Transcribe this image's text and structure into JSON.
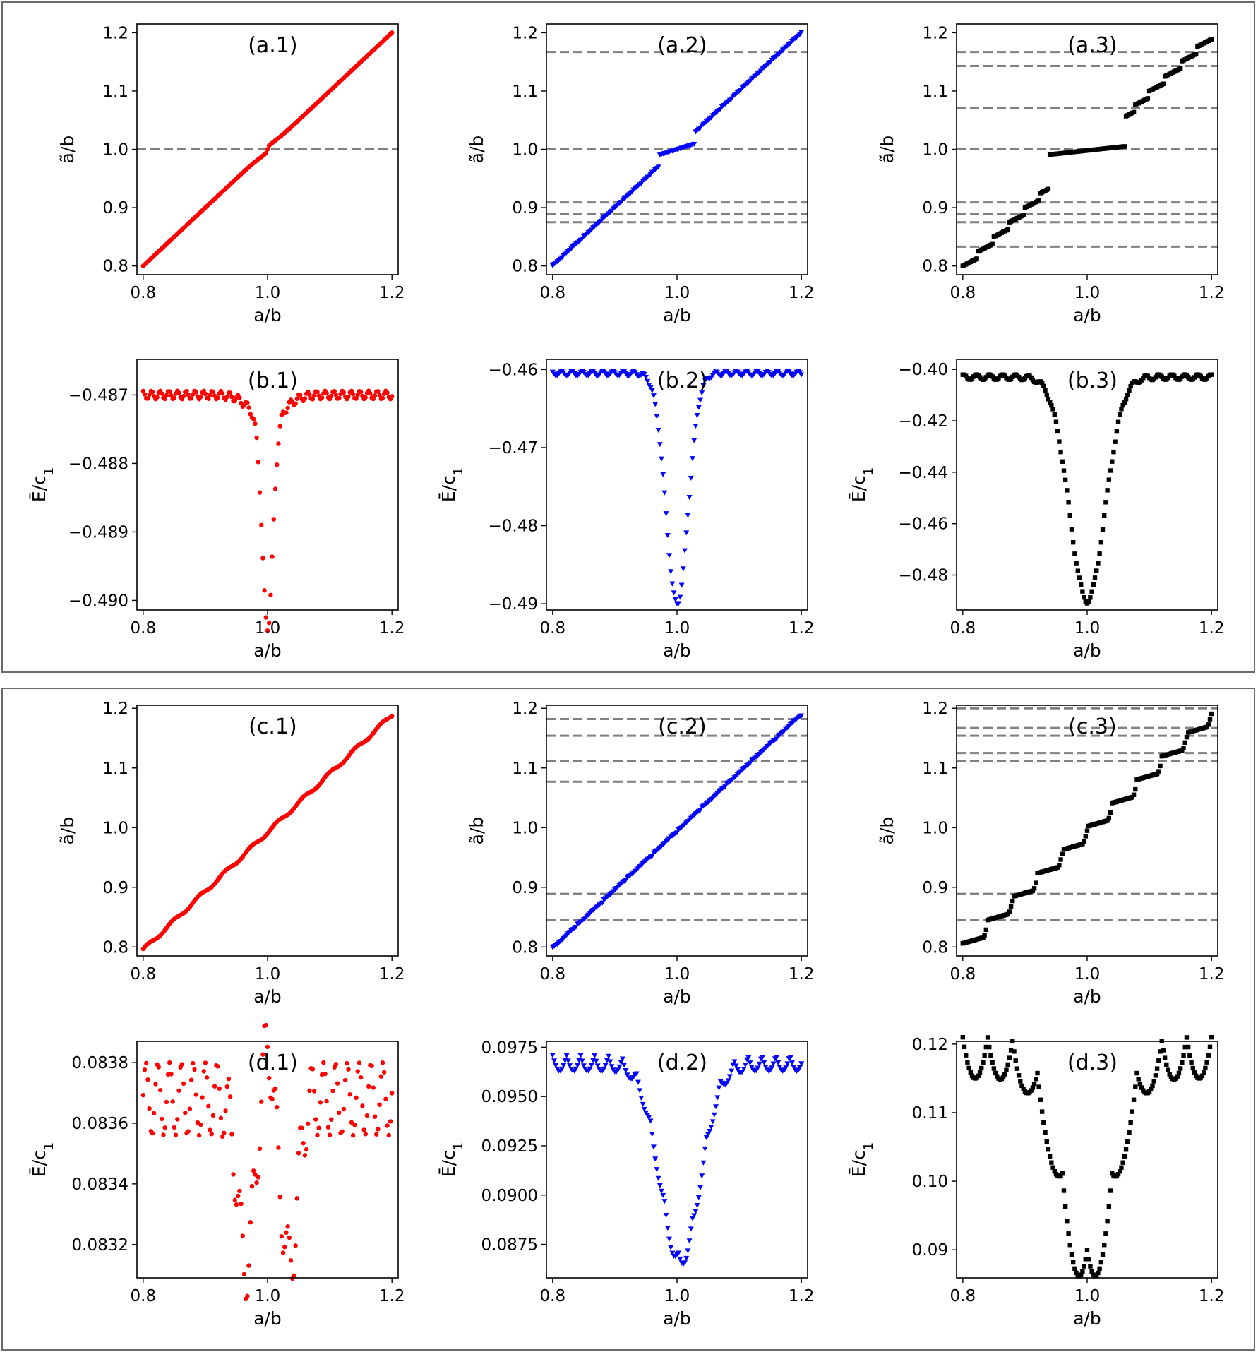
{
  "colors": {
    "red": "#ff0000",
    "blue": "#0000ff",
    "black": "#000000",
    "ref_line": "#808080"
  },
  "chart_data": [
    {
      "id": "a1",
      "type": "scatter",
      "title": "(a.1)",
      "marker": "circle",
      "color": "#ff0000",
      "xlabel": "a/b",
      "ylabel": "ã/b",
      "ylabel_base": "ã",
      "ylabel_rest": "/b",
      "xlim": [
        0.79,
        1.21
      ],
      "ylim": [
        0.785,
        1.215
      ],
      "xticks": [
        "0.8",
        "1.0",
        "1.2"
      ],
      "xtick_values": [
        0.8,
        1.0,
        1.2
      ],
      "yticks": [
        "0.8",
        "0.9",
        "1.0",
        "1.1",
        "1.2"
      ],
      "ytick_values": [
        0.8,
        0.9,
        1.0,
        1.1,
        1.2
      ],
      "hlines": [
        1.0
      ],
      "x_range": [
        0.8,
        1.2
      ],
      "n_points": 161,
      "relation": "ã/b increases linearly with a/b from 0.8 to 1.2 with a small kink near 1.0"
    },
    {
      "id": "a2",
      "type": "scatter",
      "title": "(a.2)",
      "marker": "triangle-down",
      "color": "#0000ff",
      "xlabel": "a/b",
      "ylabel": "ã/b",
      "ylabel_base": "ã",
      "ylabel_rest": "/b",
      "xlim": [
        0.79,
        1.21
      ],
      "ylim": [
        0.785,
        1.215
      ],
      "xticks": [
        "0.8",
        "1.0",
        "1.2"
      ],
      "xtick_values": [
        0.8,
        1.0,
        1.2
      ],
      "yticks": [
        "0.8",
        "0.9",
        "1.0",
        "1.1",
        "1.2"
      ],
      "ytick_values": [
        0.8,
        0.9,
        1.0,
        1.1,
        1.2
      ],
      "hlines": [
        1.167,
        1.0,
        0.909,
        0.889,
        0.875
      ],
      "x_range": [
        0.8,
        1.2
      ],
      "n_points": 161,
      "relation": "ã/b increases in small steps from 0.8 to 1.2, with a plateau at 1.0 between a/b 0.97 and 1.03"
    },
    {
      "id": "a3",
      "type": "scatter",
      "title": "(a.3)",
      "marker": "square",
      "color": "#000000",
      "xlabel": "a/b",
      "ylabel": "ã/b",
      "ylabel_base": "ã",
      "ylabel_rest": "/b",
      "xlim": [
        0.79,
        1.21
      ],
      "ylim": [
        0.785,
        1.215
      ],
      "xticks": [
        "0.8",
        "1.0",
        "1.2"
      ],
      "xtick_values": [
        0.8,
        1.0,
        1.2
      ],
      "yticks": [
        "0.8",
        "0.9",
        "1.0",
        "1.1",
        "1.2"
      ],
      "ytick_values": [
        0.8,
        0.9,
        1.0,
        1.1,
        1.2
      ],
      "hlines": [
        1.167,
        1.143,
        1.071,
        1.0,
        0.909,
        0.889,
        0.875,
        0.833
      ],
      "x_range": [
        0.8,
        1.2
      ],
      "n_points": 161,
      "relation": "ã/b increases in pronounced steps, with a plateau at 1.0 between a/b 0.94 and 1.06"
    },
    {
      "id": "b1",
      "type": "scatter",
      "title": "(b.1)",
      "marker": "circle",
      "color": "#ff0000",
      "xlabel": "a/b",
      "ylabel": "Ē/c₁",
      "ylabel_base": "Ē/c",
      "ylabel_sub": "1",
      "xlim": [
        0.79,
        1.21
      ],
      "ylim": [
        -0.49014,
        -0.48648
      ],
      "xticks": [
        "0.8",
        "1.0",
        "1.2"
      ],
      "xtick_values": [
        0.8,
        1.0,
        1.2
      ],
      "yticks": [
        "−0.487",
        "−0.488",
        "−0.489",
        "−0.490"
      ],
      "ytick_values": [
        -0.487,
        -0.488,
        -0.489,
        -0.49
      ],
      "hlines": [],
      "x_range": [
        0.8,
        1.2
      ],
      "n_points": 161,
      "relation": "Ē/c₁ oscillates around −0.487 and dips sharply to about −0.490 near a/b = 1.0"
    },
    {
      "id": "b2",
      "type": "scatter",
      "title": "(b.2)",
      "marker": "triangle-down",
      "color": "#0000ff",
      "xlabel": "a/b",
      "ylabel": "Ē/c₁",
      "ylabel_base": "Ē/c",
      "ylabel_sub": "1",
      "xlim": [
        0.79,
        1.21
      ],
      "ylim": [
        -0.4908,
        -0.4587
      ],
      "xticks": [
        "0.8",
        "1.0",
        "1.2"
      ],
      "xtick_values": [
        0.8,
        1.0,
        1.2
      ],
      "yticks": [
        "−0.46",
        "−0.47",
        "−0.48",
        "−0.49"
      ],
      "ytick_values": [
        -0.46,
        -0.47,
        -0.48,
        -0.49
      ],
      "hlines": [],
      "x_range": [
        0.8,
        1.2
      ],
      "n_points": 161,
      "relation": "Ē/c₁ oscillates near −0.460 and forms a deep dip to −0.490 at a/b = 1.0"
    },
    {
      "id": "b3",
      "type": "scatter",
      "title": "(b.3)",
      "marker": "square",
      "color": "#000000",
      "xlabel": "a/b",
      "ylabel": "Ē/c₁",
      "ylabel_base": "Ē/c",
      "ylabel_sub": "1",
      "xlim": [
        0.79,
        1.21
      ],
      "ylim": [
        -0.4936,
        -0.3961
      ],
      "xticks": [
        "0.8",
        "1.0",
        "1.2"
      ],
      "xtick_values": [
        0.8,
        1.0,
        1.2
      ],
      "yticks": [
        "−0.40",
        "−0.42",
        "−0.44",
        "−0.46",
        "−0.48"
      ],
      "ytick_values": [
        -0.4,
        -0.42,
        -0.44,
        -0.46,
        -0.48
      ],
      "hlines": [],
      "x_range": [
        0.8,
        1.2
      ],
      "n_points": 161,
      "relation": "Ē/c₁ oscillates near −0.402 and forms a broad dip to −0.490 at a/b = 1.0"
    },
    {
      "id": "c1",
      "type": "scatter",
      "title": "(c.1)",
      "marker": "circle",
      "color": "#ff0000",
      "xlabel": "a/b",
      "ylabel": "ã/b",
      "ylabel_base": "ã",
      "ylabel_rest": "/b",
      "xlim": [
        0.79,
        1.21
      ],
      "ylim": [
        0.785,
        1.205
      ],
      "xticks": [
        "0.8",
        "1.0",
        "1.2"
      ],
      "xtick_values": [
        0.8,
        1.0,
        1.2
      ],
      "yticks": [
        "0.8",
        "0.9",
        "1.0",
        "1.1",
        "1.2"
      ],
      "ytick_values": [
        0.8,
        0.9,
        1.0,
        1.1,
        1.2
      ],
      "hlines": [],
      "x_range": [
        0.8,
        1.2
      ],
      "n_points": 161,
      "relation": "ã/b increases almost linearly from 0.80 to 1.19 with slight wiggles"
    },
    {
      "id": "c2",
      "type": "scatter",
      "title": "(c.2)",
      "marker": "triangle-down",
      "color": "#0000ff",
      "xlabel": "a/b",
      "ylabel": "ã/b",
      "ylabel_base": "ã",
      "ylabel_rest": "/b",
      "xlim": [
        0.79,
        1.21
      ],
      "ylim": [
        0.785,
        1.205
      ],
      "xticks": [
        "0.8",
        "1.0",
        "1.2"
      ],
      "xtick_values": [
        0.8,
        1.0,
        1.2
      ],
      "yticks": [
        "0.8",
        "0.9",
        "1.0",
        "1.1",
        "1.2"
      ],
      "ytick_values": [
        0.8,
        0.9,
        1.0,
        1.1,
        1.2
      ],
      "hlines": [
        1.182,
        1.154,
        1.111,
        1.077,
        0.889,
        0.846
      ],
      "x_range": [
        0.8,
        1.2
      ],
      "n_points": 161,
      "relation": "ã/b increases in smooth steps from 0.80 to 1.19"
    },
    {
      "id": "c3",
      "type": "scatter",
      "title": "(c.3)",
      "marker": "square",
      "color": "#000000",
      "xlabel": "a/b",
      "ylabel": "ã/b",
      "ylabel_base": "ã",
      "ylabel_rest": "/b",
      "xlim": [
        0.79,
        1.21
      ],
      "ylim": [
        0.785,
        1.205
      ],
      "xticks": [
        "0.8",
        "1.0",
        "1.2"
      ],
      "xtick_values": [
        0.8,
        1.0,
        1.2
      ],
      "yticks": [
        "0.8",
        "0.9",
        "1.0",
        "1.1",
        "1.2"
      ],
      "ytick_values": [
        0.8,
        0.9,
        1.0,
        1.1,
        1.2
      ],
      "hlines": [
        1.2,
        1.167,
        1.154,
        1.125,
        1.111,
        0.889,
        0.846
      ],
      "x_range": [
        0.8,
        1.2
      ],
      "n_points": 161,
      "relation": "ã/b increases in distinct steps from 0.81 to 1.19"
    },
    {
      "id": "d1",
      "type": "scatter",
      "title": "(d.1)",
      "marker": "circle",
      "color": "#ff0000",
      "xlabel": "a/b",
      "ylabel": "Ē/c₁",
      "ylabel_base": "Ē/c",
      "ylabel_sub": "1",
      "xlim": [
        0.79,
        1.21
      ],
      "ylim": [
        0.08309,
        0.08387
      ],
      "xticks": [
        "0.8",
        "1.0",
        "1.2"
      ],
      "xtick_values": [
        0.8,
        1.0,
        1.2
      ],
      "yticks": [
        "0.0838",
        "0.0836",
        "0.0834",
        "0.0832"
      ],
      "ytick_values": [
        0.0838,
        0.0836,
        0.0834,
        0.0832
      ],
      "hlines": [],
      "x_range": [
        0.8,
        1.2
      ],
      "n_points": 161,
      "relation": "Ē/c₁ oscillates between 0.0836 and 0.0838 with two deep dips to 0.0831 near a/b 0.96 and 1.04"
    },
    {
      "id": "d2",
      "type": "scatter",
      "title": "(d.2)",
      "marker": "triangle-down",
      "color": "#0000ff",
      "xlabel": "a/b",
      "ylabel": "Ē/c₁",
      "ylabel_base": "Ē/c",
      "ylabel_sub": "1",
      "xlim": [
        0.79,
        1.21
      ],
      "ylim": [
        0.0858,
        0.0978
      ],
      "xticks": [
        "0.8",
        "1.0",
        "1.2"
      ],
      "xtick_values": [
        0.8,
        1.0,
        1.2
      ],
      "yticks": [
        "0.0975",
        "0.0950",
        "0.0925",
        "0.0900",
        "0.0875"
      ],
      "ytick_values": [
        0.0975,
        0.095,
        0.0925,
        0.09,
        0.0875
      ],
      "hlines": [],
      "x_range": [
        0.8,
        1.2
      ],
      "n_points": 161,
      "relation": "Ē/c₁ falls in oscillating arcs from 0.097 to minima near 0.086 around a/b 0.98 and 1.03, then recovers to 0.096"
    },
    {
      "id": "d3",
      "type": "scatter",
      "title": "(d.3)",
      "marker": "square",
      "color": "#000000",
      "xlabel": "a/b",
      "ylabel": "Ē/c₁",
      "ylabel_base": "Ē/c",
      "ylabel_sub": "1",
      "xlim": [
        0.79,
        1.21
      ],
      "ylim": [
        0.0859,
        0.1204
      ],
      "xticks": [
        "0.8",
        "1.0",
        "1.2"
      ],
      "xtick_values": [
        0.8,
        1.0,
        1.2
      ],
      "yticks": [
        "0.12",
        "0.11",
        "0.10",
        "0.09"
      ],
      "ytick_values": [
        0.12,
        0.11,
        0.1,
        0.09
      ],
      "hlines": [],
      "x_range": [
        0.8,
        1.2
      ],
      "n_points": 161,
      "relation": "Ē/c₁ falls in arcs from 0.119 to minima near 0.087 around a/b 0.98 and 1.02, then recovers to 0.113"
    }
  ]
}
